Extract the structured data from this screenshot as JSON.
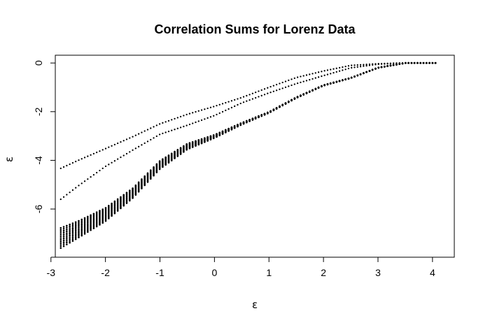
{
  "chart_data": {
    "type": "scatter",
    "title": "Correlation Sums for Lorenz Data",
    "xlabel": "ε",
    "ylabel": "ε",
    "xlim": [
      -2.92,
      4.4
    ],
    "ylim": [
      -7.98,
      0.32
    ],
    "x_ticks": [
      -3,
      -2,
      -1,
      0,
      1,
      2,
      3,
      4
    ],
    "y_ticks": [
      0,
      -2,
      -4,
      -6
    ],
    "grid": false,
    "legend": "none",
    "x_range": [
      -2.82,
      4.1
    ],
    "x_step": 0.055,
    "band_m": [
      1,
      2,
      3,
      4,
      5,
      6,
      7,
      8,
      9,
      10,
      11
    ],
    "series": [
      {
        "x": [
          -2.82,
          -2.5,
          -2.0,
          -1.5,
          -1.0,
          -0.5,
          0.0,
          0.5,
          1.0,
          1.5,
          2.0,
          2.5,
          3.0,
          3.4,
          3.5,
          4.1
        ],
        "y": [
          -4.33,
          -4.0,
          -3.52,
          -3.03,
          -2.5,
          -2.11,
          -1.78,
          -1.42,
          -1.0,
          -0.6,
          -0.33,
          -0.1,
          -0.03,
          0.0,
          0.0,
          0.0
        ]
      },
      {
        "x": [
          -2.82,
          -2.5,
          -2.0,
          -1.5,
          -1.0,
          -0.5,
          0.0,
          0.5,
          1.0,
          1.5,
          2.0,
          2.5,
          3.0,
          3.5,
          4.1
        ],
        "y": [
          -5.6,
          -5.05,
          -4.25,
          -3.58,
          -2.93,
          -2.56,
          -2.16,
          -1.64,
          -1.23,
          -0.85,
          -0.52,
          -0.2,
          -0.05,
          0.0,
          0.0
        ]
      },
      {
        "x": [
          -2.82,
          -2.5,
          -2.0,
          -1.5,
          -1.0,
          -0.5,
          0.0,
          0.5,
          1.0,
          1.5,
          2.0,
          2.5,
          3.0,
          3.5,
          4.1
        ],
        "y_top": [
          -6.78,
          -6.5,
          -5.96,
          -5.15,
          -4.02,
          -3.32,
          -2.95,
          -2.46,
          -2.01,
          -1.41,
          -0.91,
          -0.61,
          -0.19,
          0.0,
          0.0
        ],
        "y_bottom": [
          -7.6,
          -7.18,
          -6.5,
          -5.55,
          -4.35,
          -3.55,
          -3.08,
          -2.53,
          -2.05,
          -1.44,
          -0.93,
          -0.62,
          -0.2,
          0.0,
          0.0
        ]
      }
    ]
  }
}
